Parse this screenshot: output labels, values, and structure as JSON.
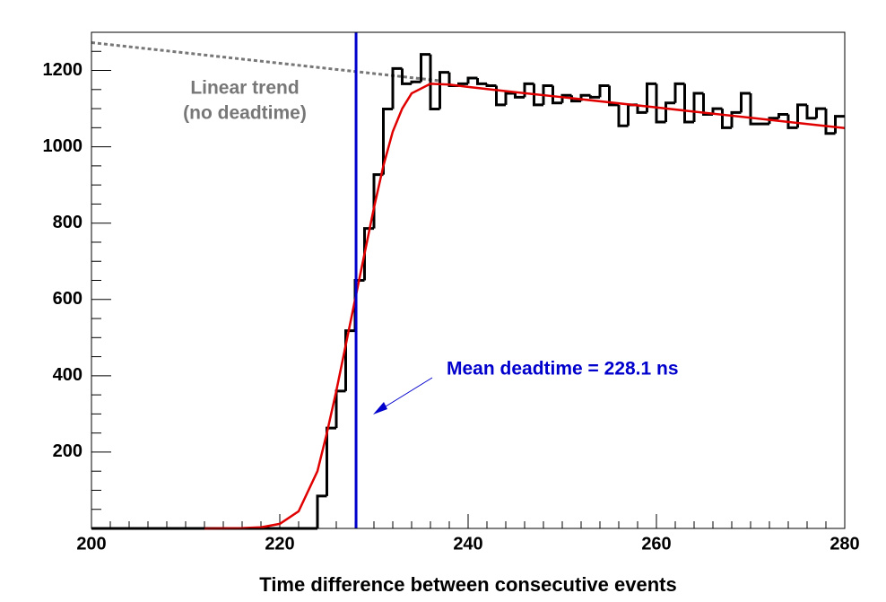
{
  "chart_data": {
    "type": "histogram",
    "xlabel": "Time difference between consecutive events",
    "bins": [
      200,
      201,
      202,
      203,
      204,
      205,
      206,
      207,
      208,
      209,
      210,
      211,
      212,
      213,
      214,
      215,
      216,
      217,
      218,
      219,
      220,
      221,
      222,
      223,
      224,
      225,
      226,
      227,
      228,
      229,
      230,
      231,
      232,
      233,
      234,
      235,
      236,
      237,
      238,
      239,
      240,
      241,
      242,
      243,
      244,
      245,
      246,
      247,
      248,
      249,
      250,
      251,
      252,
      253,
      254,
      255,
      256,
      257,
      258,
      259,
      260,
      261,
      262,
      263,
      264,
      265,
      266,
      267,
      268,
      269,
      270,
      271,
      272,
      273,
      274,
      275,
      276,
      277,
      278,
      279,
      280
    ],
    "counts": [
      0,
      0,
      0,
      0,
      0,
      0,
      0,
      0,
      0,
      0,
      0,
      0,
      0,
      0,
      0,
      0,
      0,
      0,
      0,
      0,
      0,
      0,
      0,
      0,
      85,
      263,
      360,
      518,
      650,
      786,
      927,
      1099,
      1205,
      1165,
      1170,
      1242,
      1099,
      1195,
      1160,
      1165,
      1180,
      1165,
      1160,
      1110,
      1140,
      1130,
      1165,
      1110,
      1160,
      1115,
      1135,
      1120,
      1135,
      1130,
      1160,
      1110,
      1055,
      1110,
      1090,
      1165,
      1065,
      1115,
      1165,
      1065,
      1140,
      1085,
      1100,
      1050,
      1090,
      1140,
      1060,
      1060,
      1075,
      1085,
      1050,
      1110,
      1075,
      1100,
      1035,
      1080
    ],
    "hist_color": "#000000",
    "fit": {
      "color": "#e00000",
      "x": [
        212,
        216,
        218,
        220,
        222,
        224,
        225,
        226,
        227,
        228,
        229,
        230,
        231,
        232,
        233,
        234,
        236,
        238,
        240,
        245,
        250,
        260,
        270,
        280
      ],
      "y": [
        0,
        1,
        3,
        12,
        45,
        150,
        250,
        360,
        480,
        600,
        720,
        840,
        950,
        1040,
        1100,
        1140,
        1165,
        1163,
        1157,
        1143,
        1130,
        1103,
        1076,
        1049
      ]
    },
    "trend": {
      "color": "#777777",
      "x": [
        200,
        237
      ],
      "y": [
        1273,
        1173
      ]
    },
    "trend_label": [
      "Linear trend",
      "(no deadtime)"
    ],
    "deadtime": {
      "value": 228.1,
      "color": "#0000cc",
      "label": "Mean deadtime = 228.1 ns"
    },
    "xlim": [
      200,
      280
    ],
    "xticks": [
      200,
      220,
      240,
      260,
      280
    ],
    "ylim": [
      0,
      1300
    ],
    "yticks": [
      200,
      400,
      600,
      800,
      1000,
      1200
    ]
  }
}
